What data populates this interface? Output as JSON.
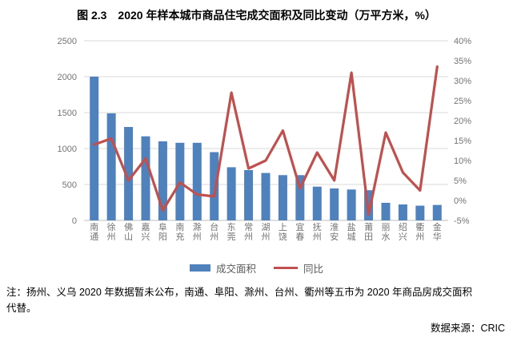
{
  "title": "图 2.3　2020 年样本城市商品住宅成交面积及同比变动（万平方米，%）",
  "legend": {
    "bar_label": "成交面积",
    "line_label": "同比"
  },
  "footnote": {
    "line1": "注：扬州、义乌 2020 年数据暂未公布，南通、阜阳、滁州、台州、衢州等五市为 2020 年商品房成交面积",
    "line2": "代替。"
  },
  "source": "数据来源：CRIC",
  "colors": {
    "bar": "#4F81BD",
    "line": "#C0504D",
    "grid": "#D9D9D9",
    "axis_line": "#BFBFBF",
    "axis_text": "#737373"
  },
  "chart_data": {
    "type": "bar",
    "subtype": "combo bar+line, dual axis",
    "title": "图 2.3　2020 年样本城市商品住宅成交面积及同比变动（万平方米，%）",
    "categories": [
      "南通",
      "徐州",
      "佛山",
      "嘉兴",
      "阜阳",
      "南充",
      "滁州",
      "台州",
      "东莞",
      "常州",
      "湖州",
      "上饶",
      "宜春",
      "抚州",
      "淮安",
      "盐城",
      "莆田",
      "丽水",
      "绍兴",
      "衢州",
      "金华"
    ],
    "series": [
      {
        "name": "成交面积",
        "type": "bar",
        "axis": "left",
        "values": [
          2000,
          1490,
          1300,
          1170,
          1100,
          1080,
          1080,
          950,
          740,
          700,
          660,
          630,
          630,
          470,
          445,
          430,
          420,
          245,
          222,
          205,
          215
        ]
      },
      {
        "name": "同比",
        "type": "line",
        "axis": "right",
        "values": [
          14,
          15.5,
          5,
          10.5,
          -2.5,
          4.5,
          1.5,
          1,
          27,
          8,
          10,
          17.5,
          3,
          12,
          5,
          32,
          -3.5,
          17,
          7,
          2.5,
          33.5
        ]
      }
    ],
    "left_axis": {
      "min": 0,
      "max": 2500,
      "step": 500,
      "ticks": [
        "0",
        "500",
        "1000",
        "1500",
        "2000",
        "2500"
      ]
    },
    "right_axis": {
      "min": -5,
      "max": 40,
      "step": 5,
      "ticks": [
        "-5%",
        "0%",
        "5%",
        "10%",
        "15%",
        "20%",
        "25%",
        "30%",
        "35%",
        "40%"
      ]
    },
    "grid": "horizontal gridlines at left-axis steps",
    "legend_position": "bottom",
    "legend_entries": [
      "成交面积",
      "同比"
    ]
  }
}
